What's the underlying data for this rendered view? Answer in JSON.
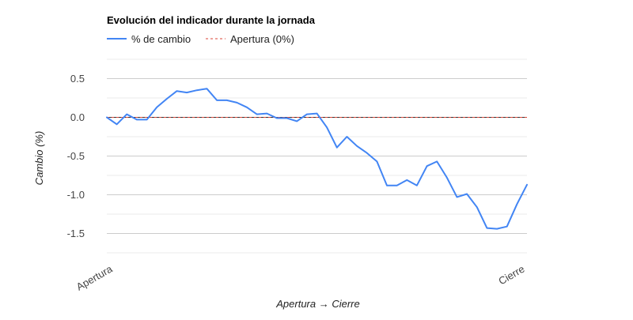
{
  "chart_data": {
    "type": "line",
    "title": "Evolución del indicador durante la jornada",
    "xlabel": "Apertura → Cierre",
    "ylabel": "Cambio (%)",
    "x_tick_labels": [
      "Apertura",
      "Cierre"
    ],
    "y_ticks": [
      0.5,
      0.0,
      -0.5,
      -1.0,
      -1.5
    ],
    "y_tick_labels": [
      "0.5",
      "0.0",
      "-0.5",
      "-1.0",
      "-1.5"
    ],
    "ylim": [
      -1.75,
      0.75
    ],
    "grid": true,
    "legend_position": "top-left",
    "colors": {
      "series": "#4285f4",
      "baseline": "#db4437",
      "axis": "#333333",
      "grid": "#cccccc",
      "minor_grid": "#ebebeb"
    },
    "series": [
      {
        "name": "% de cambio",
        "values": [
          0.0,
          -0.09,
          0.04,
          -0.03,
          -0.03,
          0.13,
          0.24,
          0.34,
          0.32,
          0.35,
          0.37,
          0.22,
          0.22,
          0.19,
          0.13,
          0.04,
          0.05,
          -0.01,
          -0.01,
          -0.05,
          0.04,
          0.05,
          -0.13,
          -0.39,
          -0.25,
          -0.37,
          -0.46,
          -0.57,
          -0.88,
          -0.88,
          -0.81,
          -0.88,
          -0.63,
          -0.57,
          -0.78,
          -1.03,
          -0.99,
          -1.16,
          -1.43,
          -1.44,
          -1.41,
          -1.12,
          -0.87
        ]
      },
      {
        "name": "Apertura (0%)",
        "style": "dashed",
        "values": [
          0.0,
          0.0
        ]
      }
    ]
  }
}
